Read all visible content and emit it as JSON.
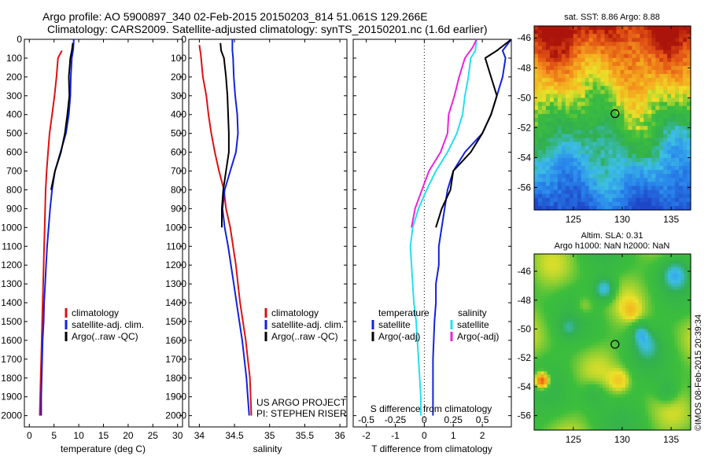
{
  "header": {
    "title_line1": "Argo profile: AO 5900897_340 02-Feb-2015 20150203_814 51.061S 129.266E",
    "title_line2": "Climatology: CARS2009. Satellite-adjusted climatology: synTS_20150201.nc (1.6d earlier)"
  },
  "colors": {
    "climatology": "#dd1111",
    "satellite": "#1122dd",
    "argo": "#000000",
    "sat_s": "#22e0ee",
    "argo_s": "#ee22dd"
  },
  "chart_data": [
    {
      "type": "line",
      "xlabel": "temperature (deg C)",
      "ylabel": "",
      "xlim": [
        -1,
        31
      ],
      "ylim": [
        2060,
        0
      ],
      "x_ticks": [
        0,
        5,
        10,
        15,
        20,
        25,
        30
      ],
      "y_ticks": [
        0,
        100,
        200,
        300,
        400,
        500,
        600,
        700,
        800,
        900,
        1000,
        1100,
        1200,
        1300,
        1400,
        1500,
        1600,
        1700,
        1800,
        1900,
        2000
      ],
      "legend": [
        "climatology",
        "satellite-adj. clim.",
        "Argo(..raw -QC)"
      ],
      "series": [
        {
          "name": "climatology",
          "points": [
            [
              6.6,
              60
            ],
            [
              5.8,
              100
            ],
            [
              5.5,
              200
            ],
            [
              5.1,
              300
            ],
            [
              4.6,
              400
            ],
            [
              4.1,
              500
            ],
            [
              3.8,
              600
            ],
            [
              3.5,
              700
            ],
            [
              3.3,
              800
            ],
            [
              3.2,
              900
            ],
            [
              3.1,
              1000
            ],
            [
              3.0,
              1100
            ],
            [
              2.9,
              1200
            ],
            [
              2.8,
              1300
            ],
            [
              2.7,
              1400
            ],
            [
              2.6,
              1500
            ],
            [
              2.5,
              1600
            ],
            [
              2.4,
              1700
            ],
            [
              2.3,
              1800
            ],
            [
              2.2,
              1900
            ],
            [
              2.1,
              2000
            ]
          ]
        },
        {
          "name": "satellite-adj. clim.",
          "points": [
            [
              9.0,
              0
            ],
            [
              8.9,
              50
            ],
            [
              8.6,
              100
            ],
            [
              8.4,
              200
            ],
            [
              8.3,
              300
            ],
            [
              8.0,
              400
            ],
            [
              7.4,
              500
            ],
            [
              6.3,
              600
            ],
            [
              5.2,
              700
            ],
            [
              4.6,
              800
            ],
            [
              4.2,
              900
            ],
            [
              3.9,
              1000
            ],
            [
              3.6,
              1100
            ],
            [
              3.4,
              1200
            ],
            [
              3.2,
              1300
            ],
            [
              3.0,
              1400
            ],
            [
              2.9,
              1500
            ],
            [
              2.7,
              1600
            ],
            [
              2.6,
              1700
            ],
            [
              2.5,
              1800
            ],
            [
              2.4,
              1900
            ],
            [
              2.4,
              2000
            ]
          ]
        },
        {
          "name": "Argo(..raw -QC)",
          "points": [
            [
              8.8,
              20
            ],
            [
              8.6,
              60
            ],
            [
              8.3,
              100
            ],
            [
              8.0,
              200
            ],
            [
              8.1,
              300
            ],
            [
              7.7,
              400
            ],
            [
              7.2,
              500
            ],
            [
              6.4,
              600
            ],
            [
              5.2,
              700
            ],
            [
              4.4,
              800
            ]
          ]
        }
      ]
    },
    {
      "type": "line",
      "xlabel": "salinity",
      "ylabel": "",
      "xlim": [
        33.85,
        36.1
      ],
      "ylim": [
        2060,
        0
      ],
      "x_ticks": [
        34,
        34.5,
        35,
        35.5,
        36
      ],
      "legend": [
        "climatology",
        "satellite-adj. clim.",
        "Argo(..raw -QC)"
      ],
      "annotation": [
        "US ARGO PROJECT",
        "PI: STEPHEN RISER"
      ],
      "series": [
        {
          "name": "climatology",
          "points": [
            [
              34.0,
              30
            ],
            [
              34.02,
              80
            ],
            [
              34.05,
              200
            ],
            [
              34.1,
              300
            ],
            [
              34.13,
              400
            ],
            [
              34.17,
              500
            ],
            [
              34.22,
              600
            ],
            [
              34.28,
              700
            ],
            [
              34.35,
              800
            ],
            [
              34.38,
              900
            ],
            [
              34.44,
              1000
            ],
            [
              34.48,
              1100
            ],
            [
              34.52,
              1200
            ],
            [
              34.55,
              1300
            ],
            [
              34.58,
              1400
            ],
            [
              34.62,
              1500
            ],
            [
              34.66,
              1600
            ],
            [
              34.69,
              1700
            ],
            [
              34.72,
              1800
            ],
            [
              34.73,
              1900
            ],
            [
              34.74,
              2000
            ]
          ]
        },
        {
          "name": "satellite-adj. clim.",
          "points": [
            [
              34.47,
              0
            ],
            [
              34.47,
              60
            ],
            [
              34.48,
              100
            ],
            [
              34.49,
              200
            ],
            [
              34.51,
              300
            ],
            [
              34.54,
              400
            ],
            [
              34.55,
              500
            ],
            [
              34.52,
              600
            ],
            [
              34.44,
              700
            ],
            [
              34.36,
              800
            ],
            [
              34.33,
              900
            ],
            [
              34.36,
              1000
            ],
            [
              34.41,
              1100
            ],
            [
              34.45,
              1200
            ],
            [
              34.49,
              1300
            ],
            [
              34.53,
              1400
            ],
            [
              34.57,
              1500
            ],
            [
              34.61,
              1600
            ],
            [
              34.64,
              1700
            ],
            [
              34.67,
              1800
            ],
            [
              34.69,
              1900
            ],
            [
              34.71,
              2000
            ]
          ]
        },
        {
          "name": "Argo(..raw -QC)",
          "points": [
            [
              34.3,
              20
            ],
            [
              34.31,
              60
            ],
            [
              34.35,
              100
            ],
            [
              34.38,
              200
            ],
            [
              34.4,
              300
            ],
            [
              34.41,
              400
            ],
            [
              34.42,
              500
            ],
            [
              34.42,
              600
            ],
            [
              34.38,
              700
            ],
            [
              34.34,
              800
            ],
            [
              34.32,
              900
            ],
            [
              34.32,
              1000
            ]
          ]
        }
      ]
    },
    {
      "type": "line",
      "xlabel": "T difference from climatology",
      "x2label": "S difference from climatology",
      "ylabel": "",
      "xlim": [
        -2.45,
        3.0
      ],
      "x2lim": [
        -0.6125,
        0.75
      ],
      "ylim": [
        2060,
        0
      ],
      "x_ticks": [
        -2,
        -1,
        0,
        1,
        2
      ],
      "x2_ticks": [
        "-0.5",
        "-0.25",
        "0",
        "0.25",
        "0.5"
      ],
      "legend_headers": [
        "temperature",
        "salinity"
      ],
      "legend": [
        "satellite",
        "Argo(-adj)",
        "satellite",
        "Argo(-adj)"
      ],
      "series": [
        {
          "name": "satellite",
          "var": "T",
          "points": [
            [
              3.0,
              0
            ],
            [
              2.7,
              60
            ],
            [
              2.8,
              100
            ],
            [
              2.7,
              200
            ],
            [
              2.5,
              300
            ],
            [
              2.3,
              400
            ],
            [
              2.0,
              500
            ],
            [
              1.4,
              600
            ],
            [
              1.0,
              700
            ],
            [
              0.8,
              800
            ],
            [
              0.7,
              900
            ],
            [
              0.6,
              1000
            ],
            [
              0.5,
              1100
            ],
            [
              0.5,
              1200
            ],
            [
              0.4,
              1300
            ],
            [
              0.4,
              1400
            ],
            [
              0.35,
              1500
            ],
            [
              0.3,
              1700
            ],
            [
              0.3,
              1900
            ],
            [
              0.3,
              2000
            ]
          ]
        },
        {
          "name": "Argo(-adj)",
          "var": "T",
          "points": [
            [
              3.0,
              0
            ],
            [
              2.5,
              60
            ],
            [
              2.1,
              100
            ],
            [
              2.3,
              200
            ],
            [
              2.5,
              300
            ],
            [
              2.3,
              400
            ],
            [
              2.0,
              500
            ],
            [
              1.6,
              600
            ],
            [
              1.0,
              700
            ],
            [
              0.9,
              800
            ],
            [
              0.6,
              900
            ],
            [
              0.4,
              1000
            ]
          ]
        },
        {
          "name": "satellite",
          "var": "S",
          "points": [
            [
              0.45,
              0
            ],
            [
              0.44,
              60
            ],
            [
              0.4,
              100
            ],
            [
              0.38,
              200
            ],
            [
              0.35,
              300
            ],
            [
              0.33,
              400
            ],
            [
              0.28,
              500
            ],
            [
              0.2,
              600
            ],
            [
              0.1,
              700
            ],
            [
              0.02,
              800
            ],
            [
              -0.05,
              900
            ],
            [
              -0.1,
              1000
            ],
            [
              -0.12,
              1100
            ],
            [
              -0.11,
              1200
            ],
            [
              -0.1,
              1300
            ],
            [
              -0.09,
              1400
            ],
            [
              -0.07,
              1500
            ],
            [
              -0.06,
              1600
            ],
            [
              -0.05,
              1700
            ],
            [
              -0.04,
              1800
            ],
            [
              -0.03,
              1900
            ],
            [
              -0.03,
              2000
            ]
          ]
        },
        {
          "name": "Argo(-adj)",
          "var": "S",
          "points": [
            [
              0.45,
              0
            ],
            [
              0.42,
              40
            ],
            [
              0.35,
              100
            ],
            [
              0.3,
              200
            ],
            [
              0.26,
              300
            ],
            [
              0.21,
              400
            ],
            [
              0.2,
              500
            ],
            [
              0.14,
              600
            ],
            [
              0.04,
              700
            ],
            [
              -0.02,
              800
            ],
            [
              -0.08,
              900
            ],
            [
              -0.11,
              1000
            ]
          ]
        }
      ]
    },
    {
      "type": "heatmap",
      "title": "sat. SST: 8.86 Argo: 8.88",
      "xlim": [
        121,
        137
      ],
      "ylim": [
        -57.5,
        -45.2
      ],
      "x_ticks": [
        125,
        130,
        135
      ],
      "y_ticks": [
        -46,
        -48,
        -50,
        -52,
        -54,
        -56
      ],
      "marker": [
        129.266,
        -51.061
      ]
    },
    {
      "type": "heatmap",
      "title": "Altim. SLA: 0.31",
      "subtitle": "Argo h1000: NaN h2000: NaN",
      "xlim": [
        121,
        137
      ],
      "ylim": [
        -57,
        -44.8
      ],
      "x_ticks": [
        125,
        130,
        135
      ],
      "y_ticks": [
        -46,
        -48,
        -50,
        -52,
        -54,
        -56
      ],
      "marker": [
        129.266,
        -51.061
      ]
    }
  ],
  "credit": "©IMOS 08-Feb-2015 20:39:34"
}
